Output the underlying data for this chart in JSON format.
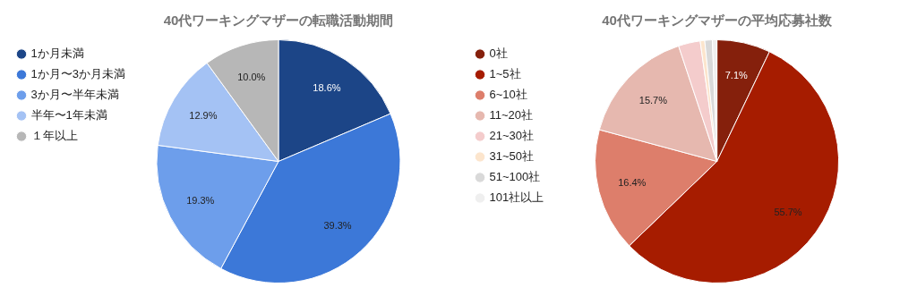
{
  "chart_data": [
    {
      "type": "pie",
      "title": "40代ワーキングマザーの転職活動期間",
      "categories": [
        "1か月未満",
        "1か月〜3か月未満",
        "3か月〜半年未満",
        "半年〜1年未満",
        "１年以上"
      ],
      "values": [
        18.6,
        39.3,
        19.3,
        12.9,
        10.0
      ],
      "colors": [
        "#1c4587",
        "#3c78d8",
        "#6d9eeb",
        "#a4c2f4",
        "#b7b7b7"
      ],
      "value_labels": [
        "18.6%",
        "39.3%",
        "19.3%",
        "12.9%",
        "10.0%"
      ],
      "legend": "left"
    },
    {
      "type": "pie",
      "title": "40代ワーキングマザーの平均応募社数",
      "categories": [
        "0社",
        "1~5社",
        "6~10社",
        "11~20社",
        "21~30社",
        "31~50社",
        "51~100社",
        "101社以上"
      ],
      "values": [
        7.1,
        55.7,
        16.4,
        15.7,
        2.9,
        0.6,
        1.0,
        0.6
      ],
      "colors": [
        "#85200c",
        "#a61c00",
        "#dd7e6b",
        "#e6b8af",
        "#f4cccc",
        "#fce5cd",
        "#d9d9d9",
        "#efefef"
      ],
      "value_labels": [
        "7.1%",
        "55.7%",
        "16.4%",
        "15.7%",
        null,
        null,
        null,
        null
      ],
      "legend": "left"
    }
  ]
}
